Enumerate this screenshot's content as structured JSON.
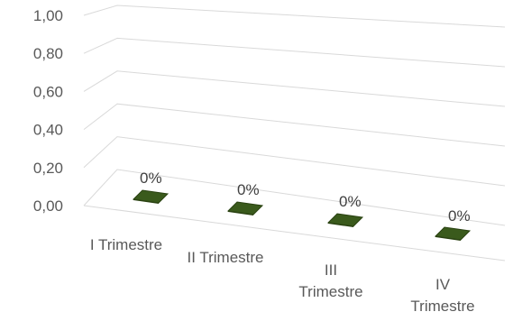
{
  "chart_data": {
    "type": "bar",
    "style": "3d-perspective",
    "categories": [
      "I Trimestre",
      "II Trimestre",
      "III Trimestre",
      "IV Trimestre"
    ],
    "category_lines": [
      [
        "I Trimestre"
      ],
      [
        "II Trimestre"
      ],
      [
        "III",
        "Trimestre"
      ],
      [
        "IV",
        "Trimestre"
      ]
    ],
    "values": [
      0,
      0,
      0,
      0
    ],
    "data_labels": [
      "0%",
      "0%",
      "0%",
      "0%"
    ],
    "ylim": [
      0,
      1
    ],
    "yticks": [
      "0,00",
      "0,20",
      "0,40",
      "0,60",
      "0,80",
      "1,00"
    ],
    "grid": true,
    "legend": "none",
    "bar_color": "#3a5a1c",
    "bar_edge_color": "#2a4212",
    "grid_color": "#d9d9d9",
    "text_color": "#595959"
  }
}
